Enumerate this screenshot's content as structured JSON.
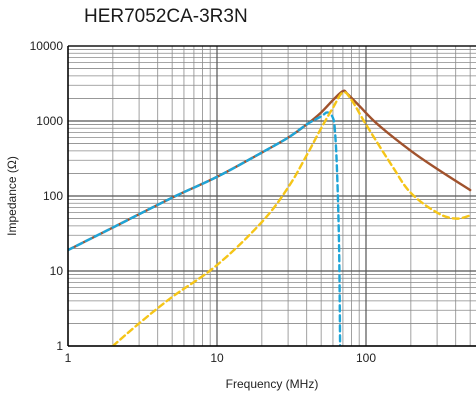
{
  "chart_data": {
    "type": "line",
    "title": "HER7052CA-3R3N",
    "xlabel": "Frequency (MHz)",
    "ylabel": "Impedance (Ω)",
    "x_scale": "log",
    "y_scale": "log",
    "xlim": [
      1,
      500
    ],
    "ylim": [
      1,
      10000
    ],
    "x_ticks": [
      "1",
      "10",
      "100"
    ],
    "y_ticks": [
      "1",
      "10",
      "100",
      "1000",
      "10000"
    ],
    "grid": true,
    "legend": "none",
    "series": [
      {
        "color": "#a0522d",
        "style": "solid",
        "points": [
          [
            1,
            19
          ],
          [
            2,
            38
          ],
          [
            5,
            95
          ],
          [
            10,
            180
          ],
          [
            20,
            380
          ],
          [
            30,
            600
          ],
          [
            40,
            900
          ],
          [
            50,
            1300
          ],
          [
            60,
            1900
          ],
          [
            70,
            2500
          ],
          [
            75,
            2300
          ],
          [
            90,
            1600
          ],
          [
            120,
            900
          ],
          [
            200,
            400
          ],
          [
            300,
            230
          ],
          [
            500,
            120
          ]
        ]
      },
      {
        "color": "#1ea5d8",
        "style": "dashed",
        "points": [
          [
            1,
            19
          ],
          [
            2,
            38
          ],
          [
            5,
            95
          ],
          [
            10,
            180
          ],
          [
            20,
            380
          ],
          [
            30,
            600
          ],
          [
            40,
            900
          ],
          [
            50,
            1150
          ],
          [
            55,
            1300
          ],
          [
            60,
            1100
          ],
          [
            62,
            700
          ],
          [
            64,
            200
          ],
          [
            66,
            20
          ],
          [
            67,
            1
          ]
        ]
      },
      {
        "color": "#f5c518",
        "style": "dashed",
        "points": [
          [
            2,
            1
          ],
          [
            3,
            2
          ],
          [
            5,
            4.5
          ],
          [
            10,
            12
          ],
          [
            20,
            45
          ],
          [
            30,
            130
          ],
          [
            40,
            350
          ],
          [
            50,
            800
          ],
          [
            60,
            1500
          ],
          [
            70,
            2400
          ],
          [
            80,
            1900
          ],
          [
            100,
            900
          ],
          [
            150,
            250
          ],
          [
            200,
            110
          ],
          [
            300,
            60
          ],
          [
            400,
            50
          ],
          [
            500,
            55
          ]
        ]
      }
    ]
  }
}
